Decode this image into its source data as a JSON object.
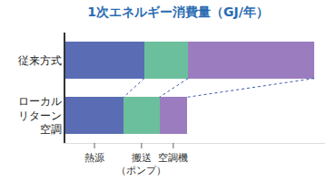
{
  "chart_data": {
    "type": "bar",
    "orientation": "horizontal",
    "stacked": true,
    "title": "1次エネルギー消費量（GJ/年）",
    "categories": [
      "従来方式",
      "ローカル\nリターン\n空調"
    ],
    "series": [
      {
        "name": "熱源",
        "color": "#5a6db4",
        "values": [
          88,
          65
        ]
      },
      {
        "name": "搬送\n（ポンプ）",
        "color": "#6cbf9c",
        "values": [
          49,
          40
        ]
      },
      {
        "name": "空調機",
        "color": "#9a7cbf",
        "values": [
          141,
          31
        ]
      }
    ],
    "xlim": [
      0,
      290
    ],
    "tick_labels": "y",
    "grid": false,
    "data_labels": false
  }
}
